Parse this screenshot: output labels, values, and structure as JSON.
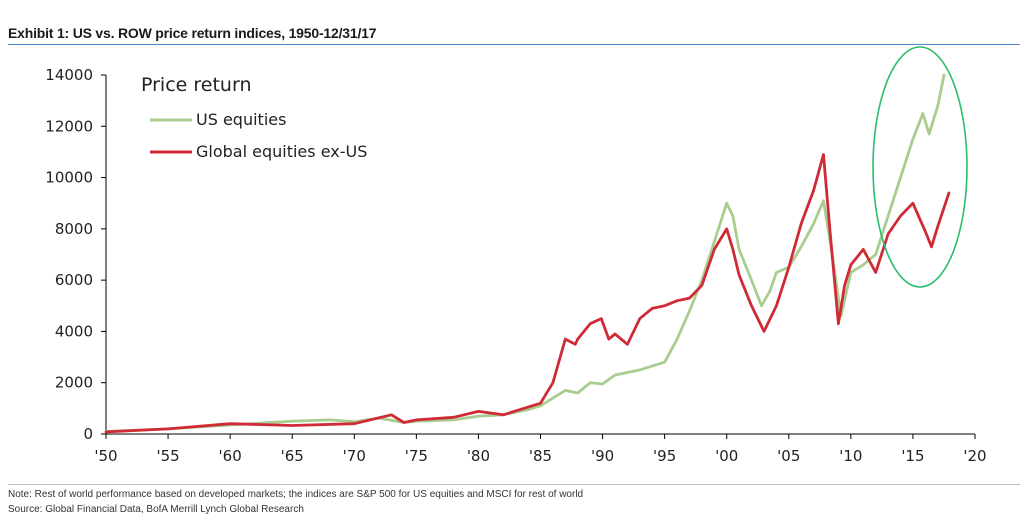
{
  "header": {
    "title": "Exhibit 1: US vs. ROW price return indices, 1950-12/31/17"
  },
  "footer": {
    "note": "Note: Rest of world performance based on developed markets; the indices are S&P 500 for US equities and MSCI for rest of world",
    "source": "Source: Global Financial Data, BofA Merrill Lynch Global Research"
  },
  "colors": {
    "us": "#a9cc8f",
    "global": "#d02a36",
    "highlight": "#2bbd6e",
    "title_rule": "#4a86c5"
  },
  "chart_data": {
    "type": "line",
    "title": "",
    "xlabel": "",
    "ylabel": "",
    "legend_title": "Price return",
    "legend_position": "top-left",
    "grid": false,
    "xlim": [
      1950,
      2020
    ],
    "ylim": [
      0,
      14000
    ],
    "x_ticks": [
      1950,
      1955,
      1960,
      1965,
      1970,
      1975,
      1980,
      1985,
      1990,
      1995,
      2000,
      2005,
      2010,
      2015,
      2020
    ],
    "x_tick_labels": [
      "'50",
      "'55",
      "'60",
      "'65",
      "'70",
      "'75",
      "'80",
      "'85",
      "'90",
      "'95",
      "'00",
      "'05",
      "'10",
      "'15",
      "'20"
    ],
    "y_ticks": [
      0,
      2000,
      4000,
      6000,
      8000,
      10000,
      12000,
      14000
    ],
    "y_tick_labels": [
      "0",
      "2000",
      "4000",
      "6000",
      "8000",
      "10000",
      "12000",
      "14000"
    ],
    "series": [
      {
        "name": "US equities",
        "color": "#a9cc8f",
        "x": [
          1950,
          1955,
          1960,
          1965,
          1968,
          1970,
          1972,
          1974,
          1975,
          1978,
          1980,
          1982,
          1984,
          1985,
          1986,
          1987,
          1988,
          1989,
          1990,
          1991,
          1993,
          1995,
          1996,
          1997,
          1998,
          1999,
          2000,
          2000.5,
          2001,
          2002,
          2002.8,
          2003.5,
          2004,
          2005,
          2006,
          2007,
          2007.8,
          2008.5,
          2009.2,
          2010,
          2011,
          2012,
          2013,
          2014,
          2015,
          2015.8,
          2016.3,
          2017,
          2017.5
        ],
        "y": [
          100,
          200,
          350,
          500,
          550,
          480,
          620,
          450,
          500,
          550,
          700,
          750,
          950,
          1100,
          1400,
          1700,
          1600,
          2000,
          1950,
          2300,
          2500,
          2800,
          3700,
          4800,
          6000,
          7500,
          9000,
          8500,
          7200,
          6000,
          5000,
          5600,
          6300,
          6500,
          7300,
          8200,
          9100,
          7000,
          4600,
          6300,
          6600,
          7000,
          8500,
          10000,
          11500,
          12500,
          11700,
          12800,
          14000
        ]
      },
      {
        "name": "Global equities ex-US",
        "color": "#d02a36",
        "x": [
          1950,
          1955,
          1960,
          1965,
          1970,
          1973,
          1974,
          1975,
          1978,
          1980,
          1982,
          1984,
          1985,
          1986,
          1987,
          1987.8,
          1988,
          1989,
          1989.9,
          1990.5,
          1991,
          1992,
          1993,
          1994,
          1995,
          1996,
          1997,
          1998,
          1999,
          2000,
          2000.5,
          2001,
          2002,
          2003,
          2004,
          2005,
          2006,
          2007,
          2007.8,
          2008.3,
          2009,
          2009.5,
          2010,
          2011,
          2012,
          2013,
          2014,
          2015,
          2016,
          2016.5,
          2017,
          2017.9
        ],
        "y": [
          80,
          200,
          400,
          330,
          400,
          750,
          450,
          550,
          650,
          880,
          750,
          1050,
          1200,
          2000,
          3700,
          3500,
          3700,
          4300,
          4500,
          3700,
          3900,
          3500,
          4500,
          4900,
          5000,
          5200,
          5300,
          5800,
          7200,
          8000,
          7200,
          6200,
          5000,
          4000,
          5000,
          6500,
          8200,
          9500,
          10900,
          8000,
          4300,
          5800,
          6600,
          7200,
          6300,
          7800,
          8500,
          9000,
          7900,
          7300,
          8100,
          9400
        ]
      }
    ]
  }
}
